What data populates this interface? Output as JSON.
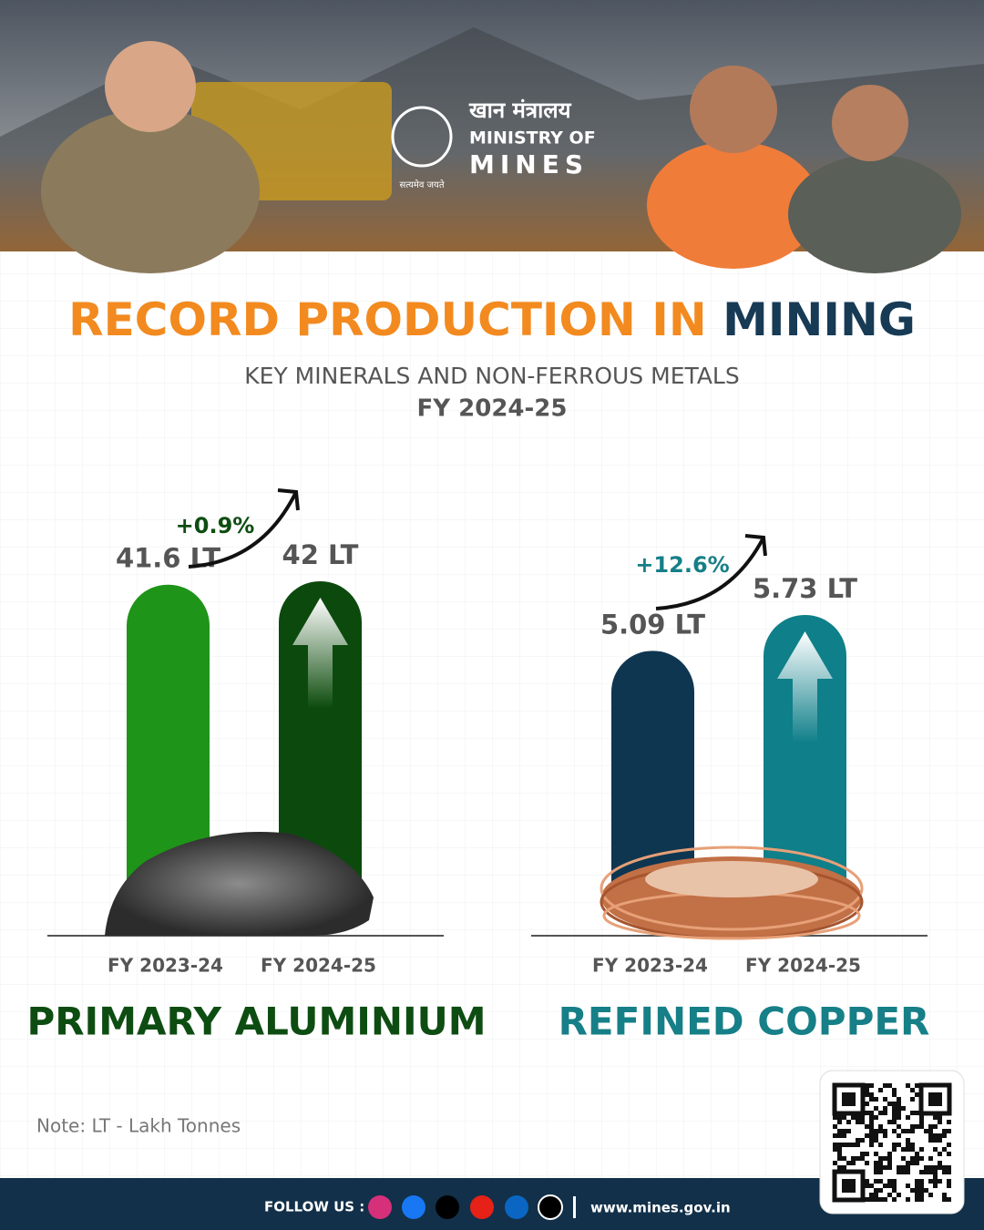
{
  "header": {
    "hindi_name": "खान मंत्रालय",
    "ministry_line1": "MINISTRY OF",
    "ministry_line2": "MINES",
    "motto": "सत्यमेव जयते"
  },
  "title_part1": "RECORD PRODUCTION IN",
  "title_part2": "MINING",
  "subtitle": "KEY MINERALS AND NON-FERROUS METALS",
  "period": "FY 2024-25",
  "chart_data": [
    {
      "type": "bar",
      "title": "PRIMARY ALUMINIUM",
      "title_color": "#0e4d12",
      "categories": [
        "FY 2023-24",
        "FY 2024-25"
      ],
      "values": [
        41.6,
        42
      ],
      "value_labels": [
        "41.6 LT",
        "42 LT"
      ],
      "colors": [
        "#1e9418",
        "#0b4a0c"
      ],
      "annotation": "+0.9%",
      "annotation_color": "#0e4d12"
    },
    {
      "type": "bar",
      "title": "REFINED COPPER",
      "title_color": "#167f87",
      "categories": [
        "FY 2023-24",
        "FY 2024-25"
      ],
      "values": [
        5.09,
        5.73
      ],
      "value_labels": [
        "5.09 LT",
        "5.73 LT"
      ],
      "colors": [
        "#0f3651",
        "#0f7f89"
      ],
      "annotation": "+12.6%",
      "annotation_color": "#167f87"
    }
  ],
  "note": "Note: LT - Lakh Tonnes",
  "footer": {
    "follow": "FOLLOW US :",
    "website": "www.mines.gov.in"
  }
}
